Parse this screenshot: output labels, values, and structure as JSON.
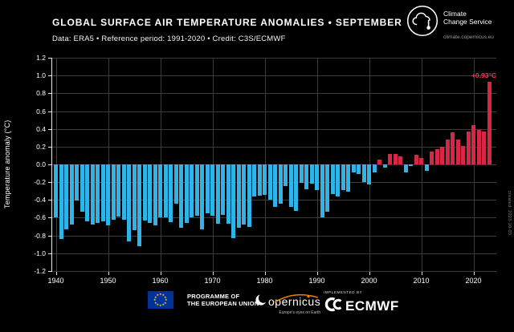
{
  "header": {
    "title": "GLOBAL SURFACE AIR TEMPERATURE ANOMALIES • SEPTEMBER",
    "subtitle": "Data: ERA5 • Reference period: 1991-2020 • Credit: C3S/ECMWF"
  },
  "logo": {
    "line1": "Climate",
    "line2": "Change Service",
    "url": "climate.copernicus.eu"
  },
  "meta": {
    "created_note": "created: 2023-10-03"
  },
  "footer": {
    "eu_programme_line1": "PROGRAMME OF",
    "eu_programme_line2": "THE EUROPEAN UNION",
    "copernicus_wordmark": "opernicus",
    "copernicus_tagline": "Europe's eyes on Earth",
    "implemented_by": "IMPLEMENTED BY",
    "ecmwf": "ECMWF"
  },
  "chart_data": {
    "type": "bar",
    "title": "Global surface air temperature anomalies - September",
    "ylabel": "Temperature anomaly (°C)",
    "xlabel": "",
    "ylim": [
      -1.2,
      1.2
    ],
    "grid": true,
    "start_year": 1940,
    "end_year": 2023,
    "yticks": [
      1.2,
      1.0,
      0.8,
      0.6,
      0.4,
      0.2,
      0.0,
      -0.2,
      -0.4,
      -0.6,
      -0.8,
      -1.0,
      -1.2
    ],
    "xticks": [
      1940,
      1950,
      1960,
      1970,
      1980,
      1990,
      2000,
      2010,
      2020
    ],
    "values": [
      -0.6,
      -0.84,
      -0.73,
      -0.68,
      -0.41,
      -0.53,
      -0.64,
      -0.68,
      -0.66,
      -0.64,
      -0.69,
      -0.62,
      -0.59,
      -0.62,
      -0.87,
      -0.74,
      -0.92,
      -0.63,
      -0.66,
      -0.69,
      -0.6,
      -0.6,
      -0.65,
      -0.44,
      -0.71,
      -0.66,
      -0.6,
      -0.58,
      -0.73,
      -0.55,
      -0.58,
      -0.67,
      -0.57,
      -0.67,
      -0.83,
      -0.71,
      -0.68,
      -0.7,
      -0.36,
      -0.35,
      -0.34,
      -0.4,
      -0.48,
      -0.44,
      -0.24,
      -0.48,
      -0.52,
      -0.21,
      -0.28,
      -0.22,
      -0.29,
      -0.6,
      -0.53,
      -0.33,
      -0.36,
      -0.29,
      -0.31,
      -0.09,
      -0.11,
      -0.2,
      -0.23,
      -0.09,
      0.05,
      -0.04,
      0.12,
      0.12,
      0.09,
      -0.09,
      -0.02,
      0.11,
      0.07,
      -0.07,
      0.14,
      0.17,
      0.2,
      0.28,
      0.36,
      0.28,
      0.21,
      0.37,
      0.44,
      0.39,
      0.37,
      0.93
    ],
    "annotation": {
      "text": "+0.93°C",
      "year": 2023,
      "value": 0.93,
      "color": "#f0325a"
    },
    "colors": {
      "positive": "#d92647",
      "negative": "#2fb4e8",
      "grid": "#3c3c3c",
      "axis": "#e9e9e9",
      "background": "#000000"
    },
    "legend": "none"
  }
}
